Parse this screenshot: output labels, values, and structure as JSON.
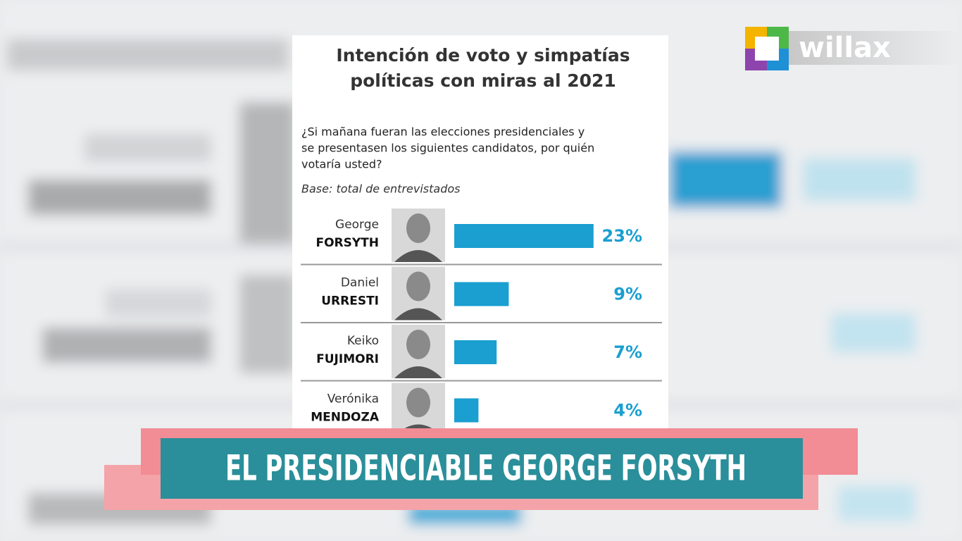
{
  "chart_data": {
    "type": "bar",
    "title": [
      "Intención de voto y simpatías",
      "políticas con miras al 2021"
    ],
    "subtitle": [
      "¿Si mañana fueran las elecciones presidenciales  y",
      "se presentasen los siguientes candidatos, por quién",
      "votaría usted?"
    ],
    "note": "Base: total de entrevistados",
    "categories": [
      [
        "George",
        "FORSYTH"
      ],
      [
        "Daniel",
        "URRESTI"
      ],
      [
        "Keiko",
        "FUJIMORI"
      ],
      [
        "Verónika",
        "MENDOZA"
      ]
    ],
    "values": [
      23,
      9,
      7,
      4
    ],
    "value_labels": [
      "23%",
      "9%",
      "7%",
      "4%"
    ],
    "color": "#1a9fd0"
  },
  "logo": "willax",
  "banner": "EL PRESIDENCIABLE GEORGE FORSYTH"
}
